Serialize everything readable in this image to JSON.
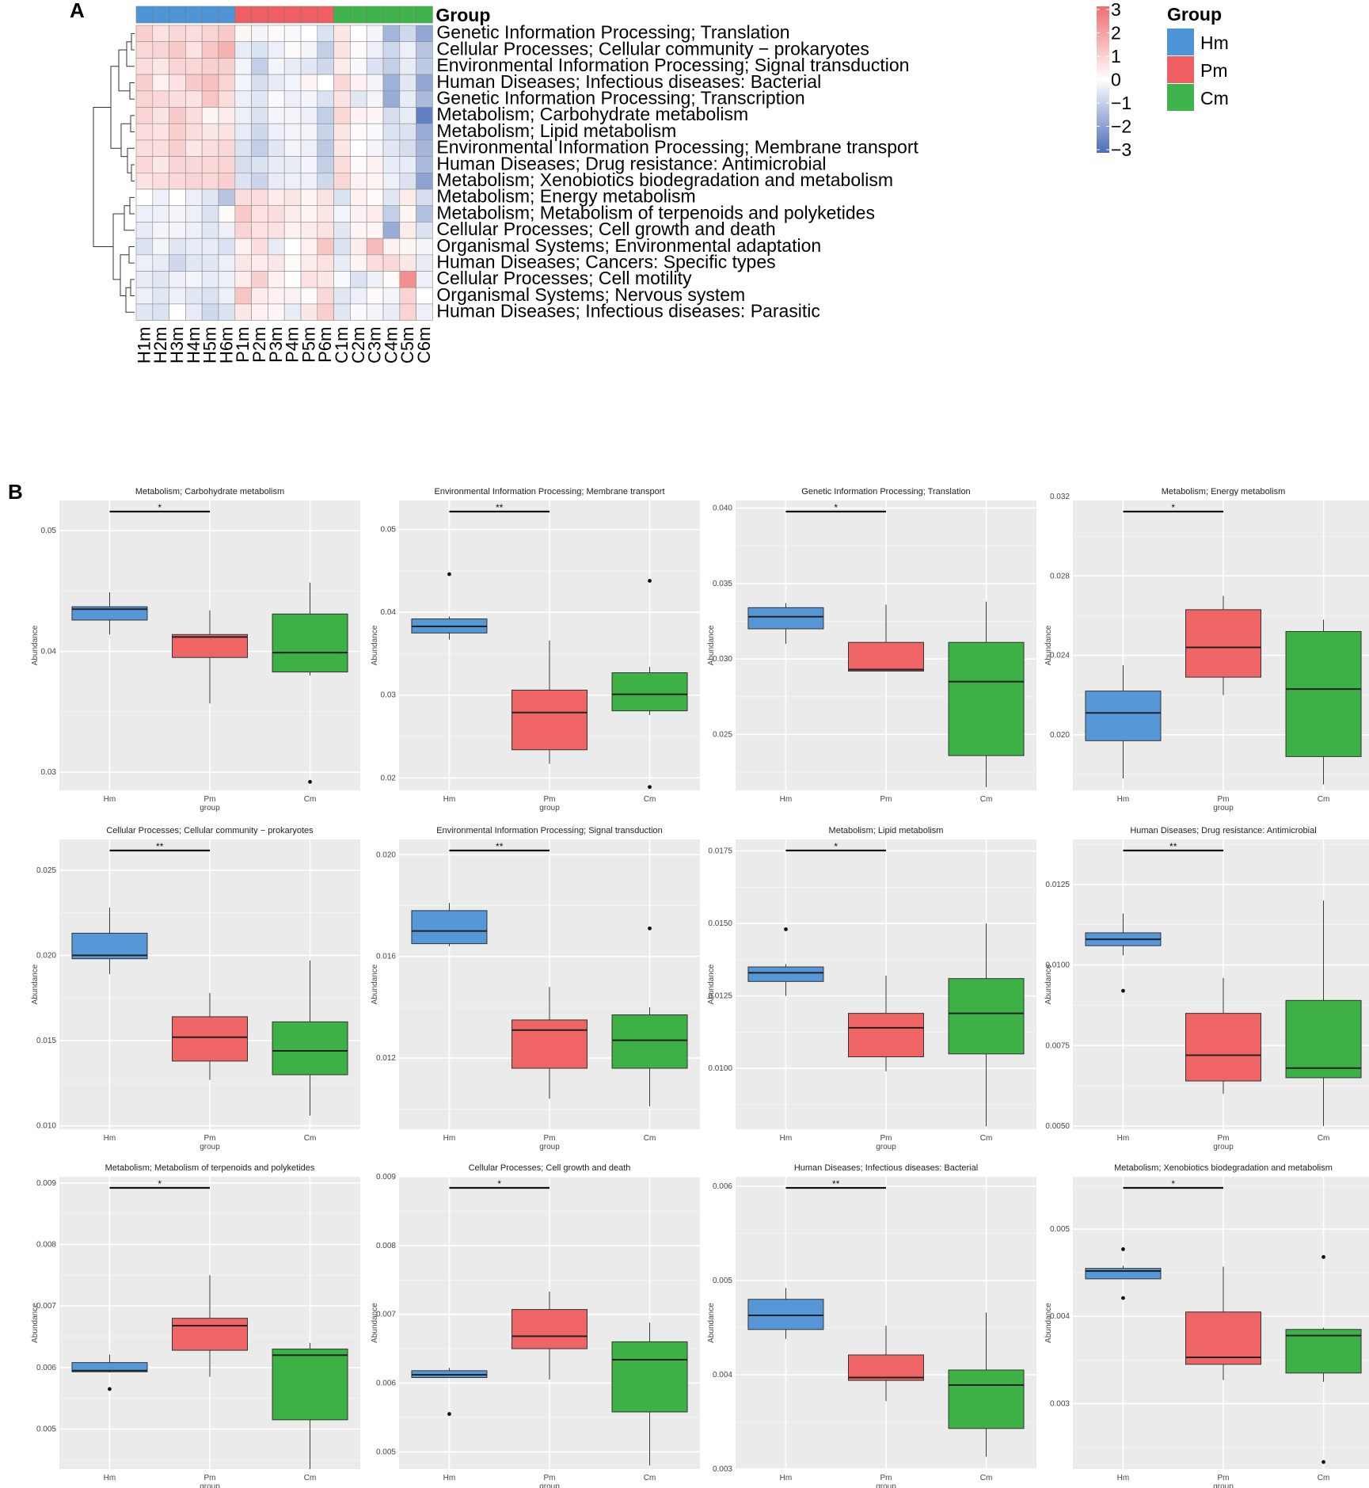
{
  "panel_labels": {
    "a": "A",
    "b": "B"
  },
  "chart_data": [
    {
      "type": "heatmap",
      "group_label": "Group",
      "columns": [
        "H1m",
        "H2m",
        "H3m",
        "H4m",
        "H5m",
        "H6m",
        "P1m",
        "P2m",
        "P3m",
        "P4m",
        "P5m",
        "P6m",
        "C1m",
        "C2m",
        "C3m",
        "C4m",
        "C5m",
        "C6m"
      ],
      "column_groups": [
        "Hm",
        "Hm",
        "Hm",
        "Hm",
        "Hm",
        "Hm",
        "Pm",
        "Pm",
        "Pm",
        "Pm",
        "Pm",
        "Pm",
        "Cm",
        "Cm",
        "Cm",
        "Cm",
        "Cm",
        "Cm"
      ],
      "rows": [
        "Genetic Information Processing; Translation",
        "Cellular Processes; Cellular community − prokaryotes",
        "Environmental Information Processing; Signal transduction",
        "Human Diseases; Infectious diseases: Bacterial",
        "Genetic Information Processing; Transcription",
        "Metabolism; Carbohydrate metabolism",
        "Metabolism; Lipid metabolism",
        "Environmental Information Processing; Membrane transport",
        "Human Diseases; Drug resistance: Antimicrobial",
        "Metabolism; Xenobiotics biodegradation and metabolism",
        "Metabolism; Energy metabolism",
        "Metabolism; Metabolism of terpenoids and polyketides",
        "Cellular Processes; Cell growth and death",
        "Organismal Systems; Environmental adaptation",
        "Human Diseases; Cancers: Specific types",
        "Cellular Processes; Cell motility",
        "Organismal Systems; Nervous system",
        "Human Diseases; Infectious diseases: Parasitic"
      ],
      "values": [
        [
          1.0,
          0.6,
          0.8,
          0.7,
          0.9,
          1.1,
          0.2,
          -0.2,
          0.1,
          -0.1,
          0.0,
          -0.6,
          0.5,
          0.0,
          -0.2,
          -1.5,
          -0.8,
          -1.8
        ],
        [
          0.8,
          0.9,
          1.1,
          0.6,
          1.2,
          1.6,
          -0.4,
          -0.6,
          -0.3,
          0.1,
          -0.2,
          -1.0,
          0.6,
          0.1,
          -0.3,
          -0.8,
          -0.3,
          -1.2
        ],
        [
          0.7,
          0.5,
          0.9,
          0.8,
          1.0,
          1.0,
          -0.2,
          -1.0,
          -0.2,
          -0.4,
          -0.5,
          -0.8,
          0.4,
          -0.1,
          -0.6,
          -1.0,
          -0.4,
          -1.1
        ],
        [
          1.0,
          0.3,
          0.6,
          1.1,
          1.3,
          0.9,
          -0.2,
          -0.7,
          -0.4,
          -0.2,
          0.2,
          0.0,
          0.8,
          0.3,
          -0.2,
          -1.6,
          -0.5,
          -1.8
        ],
        [
          0.9,
          0.8,
          0.7,
          0.6,
          1.2,
          0.7,
          -0.3,
          -0.5,
          -0.1,
          -0.3,
          -0.2,
          -0.6,
          0.6,
          -0.5,
          -0.2,
          -1.7,
          -0.4,
          -1.4
        ],
        [
          0.9,
          0.6,
          1.1,
          0.7,
          0.2,
          0.4,
          -0.3,
          -0.6,
          -0.2,
          -0.2,
          -0.3,
          -1.0,
          0.8,
          0.3,
          0.2,
          -0.7,
          -0.4,
          -2.6
        ],
        [
          0.7,
          0.6,
          1.0,
          0.7,
          0.5,
          0.6,
          -0.4,
          -0.8,
          -0.3,
          -0.2,
          -0.2,
          -0.9,
          0.5,
          0.1,
          -0.1,
          -0.6,
          -0.6,
          -1.7
        ],
        [
          0.7,
          0.7,
          1.0,
          0.5,
          0.7,
          0.8,
          -0.6,
          -1.0,
          -0.5,
          -0.2,
          -0.3,
          -1.1,
          0.5,
          0.0,
          -0.2,
          -0.5,
          -0.7,
          -1.5
        ],
        [
          0.8,
          0.5,
          0.9,
          0.8,
          0.8,
          0.9,
          -0.7,
          -0.6,
          -0.4,
          -0.4,
          -0.2,
          -1.0,
          0.7,
          0.1,
          0.3,
          -0.4,
          -0.4,
          -1.4
        ],
        [
          0.6,
          0.7,
          0.8,
          0.9,
          0.8,
          1.0,
          -0.6,
          -0.9,
          -0.4,
          -0.3,
          -0.3,
          -0.8,
          0.8,
          0.3,
          0.2,
          -0.3,
          -0.6,
          -1.9
        ],
        [
          0.0,
          -0.3,
          0.0,
          -0.3,
          -0.5,
          -1.2,
          0.7,
          0.7,
          0.4,
          0.5,
          0.2,
          0.6,
          -0.6,
          0.3,
          0.1,
          -0.5,
          0.4,
          -0.7
        ],
        [
          -0.3,
          -0.3,
          -0.2,
          -0.3,
          -0.6,
          0.1,
          1.1,
          0.6,
          0.7,
          0.4,
          0.2,
          0.5,
          -0.2,
          0.3,
          0.4,
          -1.0,
          0.2,
          -1.3
        ],
        [
          -0.4,
          -0.2,
          -0.2,
          -0.3,
          -0.5,
          -0.3,
          0.9,
          0.6,
          0.6,
          0.3,
          0.4,
          0.6,
          -0.5,
          0.2,
          0.2,
          -1.7,
          0.4,
          -0.6
        ],
        [
          -0.6,
          -0.2,
          -0.5,
          -0.4,
          -0.4,
          -0.6,
          0.3,
          0.7,
          -0.4,
          0.0,
          0.3,
          1.2,
          -0.6,
          0.4,
          1.4,
          0.3,
          0.2,
          -0.2
        ],
        [
          -0.3,
          -0.4,
          -0.8,
          -0.5,
          -0.5,
          -0.3,
          0.5,
          0.4,
          0.5,
          0.1,
          0.4,
          0.6,
          -0.4,
          0.2,
          0.7,
          0.8,
          0.5,
          -0.4
        ],
        [
          -0.4,
          -0.5,
          -0.3,
          -0.2,
          -0.4,
          -0.3,
          0.4,
          1.0,
          0.3,
          0.0,
          0.6,
          0.5,
          -0.1,
          -0.6,
          -0.3,
          0.1,
          2.3,
          -0.3
        ],
        [
          -0.3,
          -0.5,
          -0.3,
          -0.5,
          -0.6,
          -0.3,
          1.2,
          0.4,
          0.3,
          0.3,
          0.1,
          0.8,
          -0.5,
          -0.3,
          0.1,
          -0.2,
          0.9,
          0.0
        ],
        [
          -0.5,
          -0.6,
          0.0,
          -0.4,
          -0.8,
          -0.6,
          0.5,
          0.3,
          0.2,
          -0.4,
          0.5,
          1.0,
          -0.5,
          -0.1,
          -0.2,
          -0.4,
          0.9,
          -0.3
        ]
      ],
      "color_scale": {
        "min": -3,
        "max": 3,
        "ticks": [
          "3",
          "2",
          "1",
          "0",
          "−1",
          "−2",
          "−3"
        ],
        "low": "#4A6DB8",
        "mid": "#FFFFFF",
        "high": "#EE6E6E"
      },
      "legend": {
        "title": "Group",
        "entries": [
          {
            "label": "Hm",
            "color": "#4D95D6"
          },
          {
            "label": "Pm",
            "color": "#EE5E62"
          },
          {
            "label": "Cm",
            "color": "#40B44C"
          }
        ]
      }
    },
    {
      "type": "boxplot",
      "categories": [
        "Hm",
        "Pm",
        "Cm"
      ],
      "colors": [
        "#5698D7",
        "#EF6566",
        "#3DB046"
      ],
      "ylabel": "Abundance",
      "xlabel": "group",
      "panels": [
        {
          "title": "Metabolism; Carbohydrate metabolism",
          "sig": "*",
          "ylim": [
            0.0285,
            0.0525
          ],
          "yticks": [
            "0.03",
            "0.04",
            "0.05"
          ],
          "boxes": [
            [
              0.0414,
              0.0426,
              0.0435,
              0.0437,
              0.0449
            ],
            [
              0.0357,
              0.0395,
              0.0412,
              0.0414,
              0.0434
            ],
            [
              0.038,
              0.0383,
              0.0399,
              0.0431,
              0.0457
            ]
          ],
          "outliers": [
            [],
            [],
            [
              0.0292
            ]
          ],
          "show_xlabel": true
        },
        {
          "title": "Environmental Information Processing; Membrane transport",
          "sig": "**",
          "ylim": [
            0.0185,
            0.0535
          ],
          "yticks": [
            "0.02",
            "0.03",
            "0.04",
            "0.05"
          ],
          "boxes": [
            [
              0.0367,
              0.0375,
              0.0383,
              0.0392,
              0.0395
            ],
            [
              0.0217,
              0.0234,
              0.0279,
              0.0306,
              0.0366
            ],
            [
              0.0276,
              0.0281,
              0.0301,
              0.0327,
              0.0334
            ]
          ],
          "outliers": [
            [
              0.0446
            ],
            [],
            [
              0.0189,
              0.0438
            ]
          ],
          "show_xlabel": true
        },
        {
          "title": "Genetic Information Processing; Translation",
          "sig": "*",
          "ylim": [
            0.0213,
            0.0405
          ],
          "yticks": [
            "0.025",
            "0.030",
            "0.035",
            "0.040"
          ],
          "boxes": [
            [
              0.031,
              0.032,
              0.0328,
              0.0334,
              0.0337
            ],
            [
              0.0292,
              0.0292,
              0.0293,
              0.0311,
              0.0336
            ],
            [
              0.0215,
              0.0236,
              0.0285,
              0.0311,
              0.0338
            ]
          ],
          "outliers": [
            [],
            [],
            []
          ],
          "show_xlabel": false
        },
        {
          "title": "Metabolism; Energy metabolism",
          "sig": "*",
          "ylim": [
            0.0172,
            0.0318
          ],
          "yticks": [
            "0.020",
            "0.024",
            "0.028",
            "0.032"
          ],
          "boxes": [
            [
              0.0178,
              0.0197,
              0.0211,
              0.0222,
              0.0235
            ],
            [
              0.022,
              0.0229,
              0.0244,
              0.0263,
              0.027
            ],
            [
              0.0175,
              0.0189,
              0.0223,
              0.0252,
              0.0258
            ]
          ],
          "outliers": [
            [],
            [],
            []
          ],
          "show_xlabel": true
        },
        {
          "title": "Cellular Processes; Cellular community − prokaryotes",
          "sig": "**",
          "ylim": [
            0.0098,
            0.0268
          ],
          "yticks": [
            "0.010",
            "0.015",
            "0.020",
            "0.025"
          ],
          "boxes": [
            [
              0.0189,
              0.0198,
              0.02,
              0.0213,
              0.0228
            ],
            [
              0.0127,
              0.0138,
              0.0152,
              0.0164,
              0.0178
            ],
            [
              0.0106,
              0.013,
              0.0144,
              0.0161,
              0.0197
            ]
          ],
          "outliers": [
            [],
            [],
            []
          ],
          "show_xlabel": true
        },
        {
          "title": "Environmental Information Processing; Signal transduction",
          "sig": "**",
          "ylim": [
            0.0092,
            0.0206
          ],
          "yticks": [
            "0.012",
            "0.016",
            "0.020"
          ],
          "boxes": [
            [
              0.0164,
              0.0165,
              0.017,
              0.0178,
              0.0181
            ],
            [
              0.0104,
              0.0116,
              0.0131,
              0.0135,
              0.0148
            ],
            [
              0.0101,
              0.0116,
              0.0127,
              0.0137,
              0.014
            ]
          ],
          "outliers": [
            [],
            [],
            [
              0.0171
            ]
          ],
          "show_xlabel": true
        },
        {
          "title": "Metabolism; Lipid metabolism",
          "sig": "*",
          "ylim": [
            0.0079,
            0.0179
          ],
          "yticks": [
            "0.0100",
            "0.0125",
            "0.0150",
            "0.0175"
          ],
          "boxes": [
            [
              0.0125,
              0.013,
              0.0133,
              0.0135,
              0.0136
            ],
            [
              0.0099,
              0.0104,
              0.0114,
              0.0119,
              0.0132
            ],
            [
              0.008,
              0.0105,
              0.0119,
              0.0131,
              0.015
            ]
          ],
          "outliers": [
            [
              0.0148
            ],
            [],
            []
          ],
          "show_xlabel": true
        },
        {
          "title": "Human Diseases; Drug resistance: Antimicrobial",
          "sig": "**",
          "ylim": [
            0.0049,
            0.0139
          ],
          "yticks": [
            "0.0050",
            "0.0075",
            "0.0100",
            "0.0125"
          ],
          "boxes": [
            [
              0.0103,
              0.0106,
              0.0108,
              0.011,
              0.0116
            ],
            [
              0.006,
              0.0064,
              0.0072,
              0.0085,
              0.0096
            ],
            [
              0.005,
              0.0065,
              0.0068,
              0.0089,
              0.012
            ]
          ],
          "outliers": [
            [
              0.0092
            ],
            [],
            []
          ],
          "show_xlabel": true
        },
        {
          "title": "Metabolism; Metabolism of terpenoids and polyketides",
          "sig": "*",
          "ylim": [
            0.00435,
            0.0091
          ],
          "yticks": [
            "0.005",
            "0.006",
            "0.007",
            "0.008",
            "0.009"
          ],
          "boxes": [
            [
              0.00592,
              0.00593,
              0.00595,
              0.00608,
              0.00621
            ],
            [
              0.00585,
              0.00628,
              0.00668,
              0.0068,
              0.0075
            ],
            [
              0.00435,
              0.00515,
              0.0062,
              0.0063,
              0.0064
            ]
          ],
          "outliers": [
            [
              0.00565
            ],
            [],
            []
          ],
          "show_xlabel": true
        },
        {
          "title": "Cellular Processes; Cell growth and death",
          "sig": "*",
          "ylim": [
            0.00475,
            0.009
          ],
          "yticks": [
            "0.005",
            "0.006",
            "0.007",
            "0.008",
            "0.009"
          ],
          "boxes": [
            [
              0.00608,
              0.00608,
              0.00612,
              0.00618,
              0.00622
            ],
            [
              0.00605,
              0.0065,
              0.00668,
              0.00707,
              0.00733
            ],
            [
              0.0048,
              0.00558,
              0.00634,
              0.0066,
              0.00688
            ]
          ],
          "outliers": [
            [
              0.00555
            ],
            [],
            []
          ],
          "show_xlabel": true
        },
        {
          "title": "Human Diseases; Infectious diseases: Bacterial",
          "sig": "**",
          "ylim": [
            0.003,
            0.0061
          ],
          "yticks": [
            "0.003",
            "0.004",
            "0.005",
            "0.006"
          ],
          "boxes": [
            [
              0.00438,
              0.00448,
              0.00463,
              0.0048,
              0.00492
            ],
            [
              0.00372,
              0.00394,
              0.00397,
              0.00421,
              0.00452
            ],
            [
              0.00313,
              0.00343,
              0.00389,
              0.00405,
              0.00466
            ]
          ],
          "outliers": [
            [],
            [],
            []
          ],
          "show_xlabel": true
        },
        {
          "title": "Metabolism; Xenobiotics biodegradation and metabolism",
          "sig": "*",
          "ylim": [
            0.00225,
            0.0056
          ],
          "yticks": [
            "0.003",
            "0.004",
            "0.005"
          ],
          "boxes": [
            [
              0.00443,
              0.00443,
              0.00452,
              0.00455,
              0.00458
            ],
            [
              0.00327,
              0.00345,
              0.00353,
              0.00405,
              0.00457
            ],
            [
              0.00325,
              0.00335,
              0.00378,
              0.00385,
              0.00387
            ]
          ],
          "outliers": [
            [
              0.00421,
              0.00477
            ],
            [],
            [
              0.00233,
              0.00468
            ]
          ],
          "show_xlabel": true
        }
      ]
    }
  ]
}
